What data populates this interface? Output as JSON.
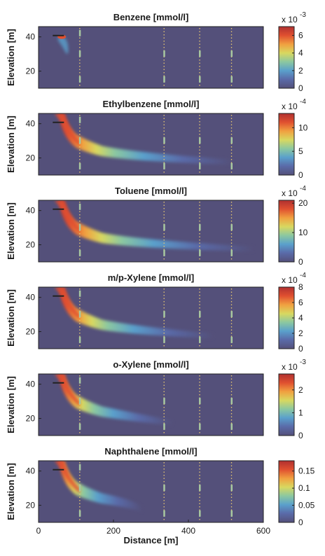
{
  "colors": {
    "background_plume": "#54507a",
    "colormap": [
      "#54507a",
      "#5a6aa8",
      "#5aa0cc",
      "#8cc8a0",
      "#d8d860",
      "#f0a040",
      "#e05030",
      "#b03030"
    ],
    "well_marker": "#e8c870",
    "screen_marker": "#a8c8a0"
  },
  "chart_data": [
    {
      "type": "heatmap",
      "title": "Benzene [mmol/l]",
      "ylabel": "Elevation [m]",
      "xlabel": "",
      "xlim": [
        0,
        600
      ],
      "ylim": [
        10,
        46
      ],
      "yticks": [
        20,
        40
      ],
      "xticks": [],
      "colorbar": {
        "ticks": [
          "0",
          "2",
          "4",
          "6"
        ],
        "range": [
          0,
          7
        ],
        "exponent": "x 10",
        "exponent_power": "-3"
      },
      "extent": 0.05
    },
    {
      "type": "heatmap",
      "title": "Ethylbenzene [mmol/l]",
      "ylabel": "Elevation [m]",
      "xlabel": "",
      "xlim": [
        0,
        600
      ],
      "ylim": [
        10,
        46
      ],
      "yticks": [
        20,
        40
      ],
      "xticks": [],
      "colorbar": {
        "ticks": [
          "0",
          "5",
          "10"
        ],
        "range": [
          0,
          13
        ],
        "exponent": "x 10",
        "exponent_power": "-4"
      },
      "extent": 0.85
    },
    {
      "type": "heatmap",
      "title": "Toluene [mmol/l]",
      "ylabel": "Elevation [m]",
      "xlabel": "",
      "xlim": [
        0,
        600
      ],
      "ylim": [
        10,
        46
      ],
      "yticks": [
        20,
        40
      ],
      "xticks": [],
      "colorbar": {
        "ticks": [
          "0",
          "10",
          "20"
        ],
        "range": [
          0,
          21
        ],
        "exponent": "x 10",
        "exponent_power": "-4"
      },
      "extent": 0.95
    },
    {
      "type": "heatmap",
      "title": "m/p-Xylene [mmol/l]",
      "ylabel": "Elevation [m]",
      "xlabel": "",
      "xlim": [
        0,
        600
      ],
      "ylim": [
        10,
        46
      ],
      "yticks": [
        20,
        40
      ],
      "xticks": [],
      "colorbar": {
        "ticks": [
          "0",
          "2",
          "4",
          "6",
          "8"
        ],
        "range": [
          0,
          8
        ],
        "exponent": "x 10",
        "exponent_power": "-4"
      },
      "extent": 0.75
    },
    {
      "type": "heatmap",
      "title": "o-Xylene [mmol/l]",
      "ylabel": "Elevation [m]",
      "xlabel": "",
      "xlim": [
        0,
        600
      ],
      "ylim": [
        10,
        46
      ],
      "yticks": [
        20,
        40
      ],
      "xticks": [],
      "colorbar": {
        "ticks": [
          "0",
          "1",
          "2"
        ],
        "range": [
          0,
          2.7
        ],
        "exponent": "x 10",
        "exponent_power": "-3"
      },
      "extent": 0.55
    },
    {
      "type": "heatmap",
      "title": "Naphthalene [mmol/l]",
      "ylabel": "Elevation [m]",
      "xlabel": "Distance [m]",
      "xlim": [
        0,
        600
      ],
      "ylim": [
        10,
        46
      ],
      "yticks": [
        20,
        40
      ],
      "xticks": [
        0,
        200,
        400,
        600
      ],
      "colorbar": {
        "ticks": [
          "0",
          "0.05",
          "0.1",
          "0.15"
        ],
        "range": [
          0,
          0.18
        ],
        "exponent": "",
        "exponent_power": ""
      },
      "extent": 0.4
    }
  ],
  "wells": [
    110,
    335,
    430,
    515
  ]
}
